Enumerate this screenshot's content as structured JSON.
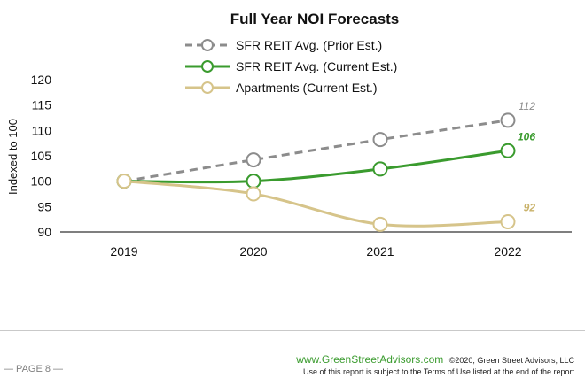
{
  "chart_data": {
    "type": "line",
    "title": "Full Year NOI Forecasts",
    "ylabel": "Indexed to 100",
    "xlabel": "",
    "categories": [
      "2019",
      "2020",
      "2021",
      "2022"
    ],
    "ylim": [
      90,
      120
    ],
    "yticks": [
      90,
      95,
      100,
      105,
      110,
      115,
      120
    ],
    "legend_position": "top-center",
    "series": [
      {
        "name": "SFR REIT Avg. (Prior Est.)",
        "values": [
          100,
          104.2,
          108.2,
          112
        ],
        "color": "#8c8c8c",
        "dash": true,
        "end_label": "112",
        "label_color": "#8c8c8c"
      },
      {
        "name": "SFR REIT Avg. (Current Est.)",
        "values": [
          100,
          100,
          102.4,
          106
        ],
        "color": "#3a9b2e",
        "dash": false,
        "end_label": "106",
        "label_color": "#3a9b2e"
      },
      {
        "name": "Apartments (Current Est.)",
        "values": [
          100,
          97.5,
          91.5,
          92
        ],
        "color": "#d6c48a",
        "dash": false,
        "end_label": "92",
        "label_color": "#c9b26a"
      }
    ]
  },
  "footer": {
    "page": "— PAGE 8 —",
    "website": "www.GreenStreetAdvisors.com",
    "copyright": "©2020, Green Street Advisors, LLC",
    "terms": "Use of this report is subject to the Terms of Use listed at the end of the report"
  }
}
